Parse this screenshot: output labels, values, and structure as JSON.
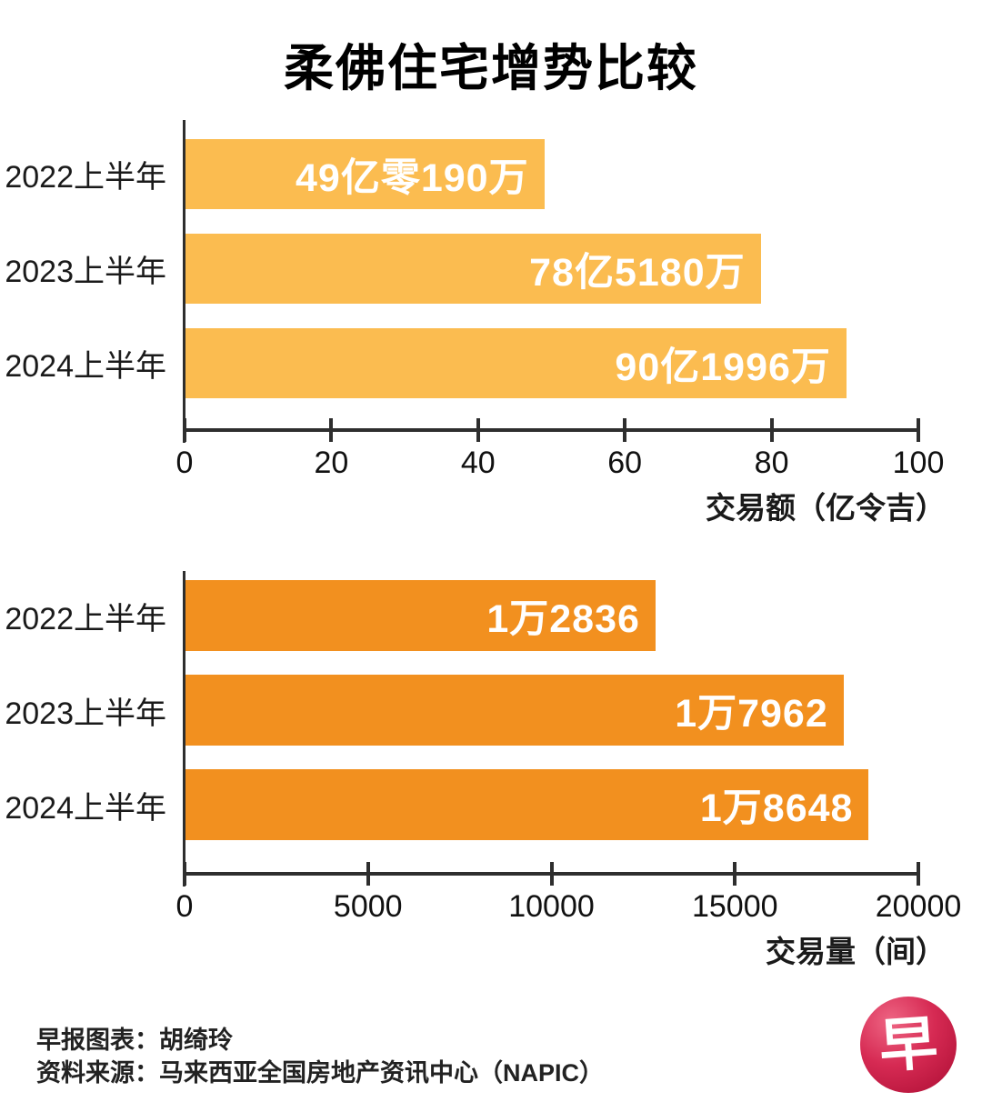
{
  "title": "柔佛住宅增势比较",
  "chart_data": [
    {
      "type": "bar",
      "orientation": "horizontal",
      "title": "柔佛住宅增势比较",
      "categories": [
        "2022上半年",
        "2023上半年",
        "2024上半年"
      ],
      "values": [
        49.019,
        78.518,
        90.1996
      ],
      "value_labels": [
        "49亿零190万",
        "78亿5180万",
        "90亿1996万"
      ],
      "xlabel": "交易额（亿令吉）",
      "xlim": [
        0,
        100
      ],
      "xticks": [
        0,
        20,
        40,
        60,
        80,
        100
      ],
      "grid": false,
      "legend": "none",
      "bar_color": "#FBBC50",
      "value_text_color": "#FFFFFF"
    },
    {
      "type": "bar",
      "orientation": "horizontal",
      "categories": [
        "2022上半年",
        "2023上半年",
        "2024上半年"
      ],
      "values": [
        12836,
        17962,
        18648
      ],
      "value_labels": [
        "1万2836",
        "1万7962",
        "1万8648"
      ],
      "xlabel": "交易量（间）",
      "xlim": [
        0,
        20000
      ],
      "xticks": [
        0,
        5000,
        10000,
        15000,
        20000
      ],
      "grid": false,
      "legend": "none",
      "bar_color": "#F2901F",
      "value_text_color": "#FFFFFF"
    }
  ],
  "footer": {
    "credit": "早报图表：胡绮玲",
    "source": "资料来源：马来西亚全国房地产资讯中心（NAPIC）"
  },
  "logo": {
    "char": "早",
    "color": "#C1123C"
  }
}
